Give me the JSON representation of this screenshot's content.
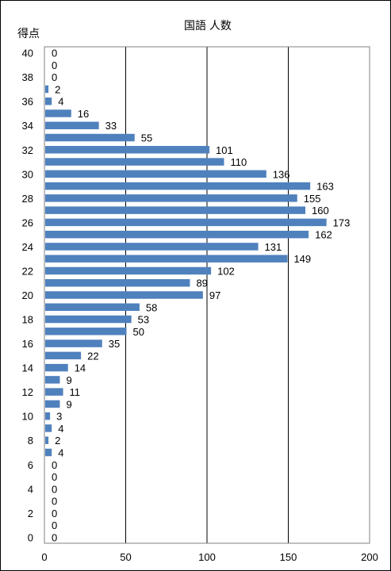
{
  "chart_data": {
    "type": "bar",
    "orientation": "horizontal",
    "title": "国語 人数",
    "ylabel": "得点",
    "xlabel": "",
    "xlim": [
      0,
      200
    ],
    "x_ticks": [
      0,
      50,
      100,
      150,
      200
    ],
    "y_ticks": [
      0,
      2,
      4,
      6,
      8,
      10,
      12,
      14,
      16,
      18,
      20,
      22,
      24,
      26,
      28,
      30,
      32,
      34,
      36,
      38,
      40
    ],
    "grid": "vertical",
    "legend": "none",
    "bar_color": "#4F81BD",
    "categories": [
      0,
      1,
      2,
      3,
      4,
      5,
      6,
      7,
      8,
      9,
      10,
      11,
      12,
      13,
      14,
      15,
      16,
      17,
      18,
      19,
      20,
      21,
      22,
      23,
      24,
      25,
      26,
      27,
      28,
      29,
      30,
      31,
      32,
      33,
      34,
      35,
      36,
      37,
      38,
      39,
      40
    ],
    "values": [
      0,
      0,
      0,
      0,
      0,
      0,
      0,
      4,
      2,
      4,
      3,
      9,
      11,
      9,
      14,
      22,
      35,
      50,
      53,
      58,
      97,
      89,
      102,
      149,
      131,
      162,
      173,
      160,
      155,
      163,
      136,
      110,
      101,
      55,
      33,
      16,
      4,
      2,
      0,
      0,
      0
    ],
    "data_labels": [
      "0",
      "0",
      "0",
      "0",
      "0",
      "0",
      "0",
      "4",
      "2",
      "4",
      "3",
      "9",
      "11",
      "9",
      "14",
      "22",
      "35",
      "50",
      "53",
      "58",
      "97",
      "89",
      "102",
      "149",
      "131",
      "162",
      "173",
      "160",
      "155",
      "163",
      "136",
      "110",
      "101",
      "55",
      "33",
      "16",
      "4",
      "2",
      "0",
      "0",
      "0"
    ]
  }
}
